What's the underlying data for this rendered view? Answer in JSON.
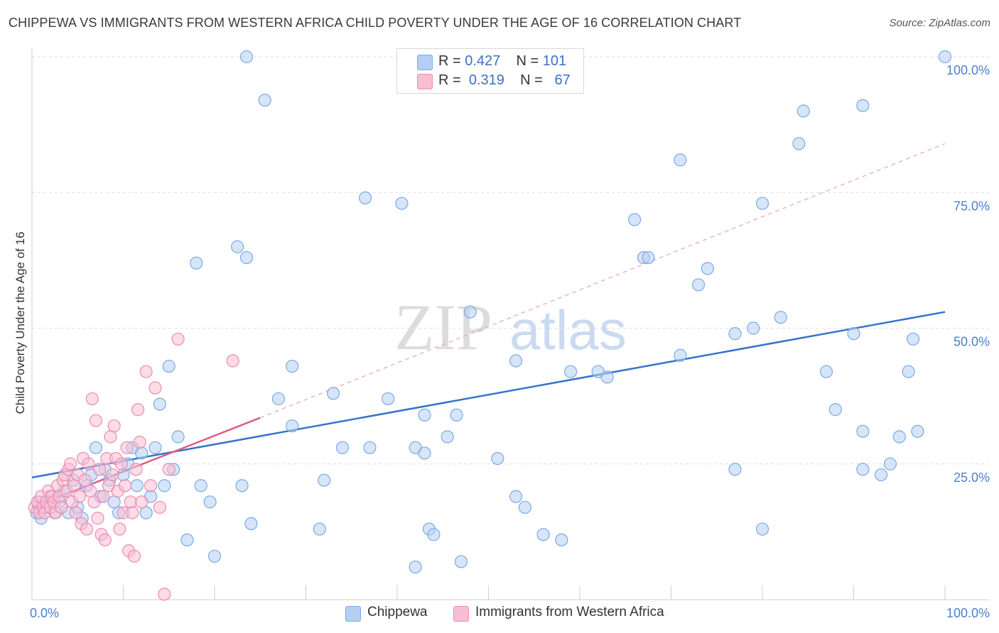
{
  "title": "CHIPPEWA VS IMMIGRANTS FROM WESTERN AFRICA CHILD POVERTY UNDER THE AGE OF 16 CORRELATION CHART",
  "source": "Source: ZipAtlas.com",
  "watermark": {
    "zip": "ZIP",
    "atlas": "atlas"
  },
  "legend_top": {
    "rows": [
      {
        "r_label": "R =",
        "r_value": "0.427",
        "n_label": "N =",
        "n_value": "101"
      },
      {
        "r_label": "R =",
        "r_value": "0.319",
        "n_label": "N =",
        "n_value": "67"
      }
    ]
  },
  "chart_data": {
    "type": "scatter",
    "title": "CHIPPEWA VS IMMIGRANTS FROM WESTERN AFRICA CHILD POVERTY UNDER THE AGE OF 16 CORRELATION CHART",
    "xlabel": "",
    "ylabel": "Child Poverty Under the Age of 16",
    "xlim": [
      0,
      100
    ],
    "ylim": [
      0,
      100
    ],
    "x_tick_labels": [
      "0.0%",
      "100.0%"
    ],
    "y_ticks": [
      25,
      50,
      75,
      100
    ],
    "y_tick_labels": [
      "25.0%",
      "50.0%",
      "75.0%",
      "100.0%"
    ],
    "grid": true,
    "legend_position": "bottom",
    "series": [
      {
        "name": "Chippewa",
        "color": "#7aaae6",
        "fill": "#b4cff2",
        "line_color": "#3674cc",
        "R": 0.427,
        "N": 101,
        "trend": {
          "x0": 0,
          "y0": 22.5,
          "x1": 100,
          "y1": 53.0,
          "dashed_extension": false
        },
        "points": [
          [
            0.5,
            16
          ],
          [
            0.8,
            18
          ],
          [
            1,
            15
          ],
          [
            1.5,
            17
          ],
          [
            2,
            19
          ],
          [
            2.5,
            16
          ],
          [
            3,
            18
          ],
          [
            3.5,
            20
          ],
          [
            4,
            16
          ],
          [
            4.5,
            22
          ],
          [
            5,
            17
          ],
          [
            5.5,
            15
          ],
          [
            6,
            21
          ],
          [
            6.5,
            23
          ],
          [
            7,
            28
          ],
          [
            7.5,
            19
          ],
          [
            8,
            24
          ],
          [
            8.5,
            22
          ],
          [
            9,
            18
          ],
          [
            9.5,
            16
          ],
          [
            10,
            23
          ],
          [
            10.5,
            25
          ],
          [
            11,
            28
          ],
          [
            11.5,
            21
          ],
          [
            12,
            27
          ],
          [
            12.5,
            16
          ],
          [
            13,
            19
          ],
          [
            13.5,
            28
          ],
          [
            14,
            36
          ],
          [
            14.5,
            21
          ],
          [
            15,
            43
          ],
          [
            15.5,
            24
          ],
          [
            16,
            30
          ],
          [
            17,
            11
          ],
          [
            18,
            62
          ],
          [
            18.5,
            21
          ],
          [
            19.5,
            18
          ],
          [
            20,
            8
          ],
          [
            22.5,
            65
          ],
          [
            23,
            21
          ],
          [
            23.5,
            100
          ],
          [
            23.5,
            63
          ],
          [
            24,
            14
          ],
          [
            25.5,
            92
          ],
          [
            27,
            37
          ],
          [
            28.5,
            32
          ],
          [
            28.5,
            43
          ],
          [
            31.5,
            13
          ],
          [
            32,
            22
          ],
          [
            33,
            38
          ],
          [
            34,
            28
          ],
          [
            36.5,
            74
          ],
          [
            37,
            28
          ],
          [
            39,
            37
          ],
          [
            40.5,
            73
          ],
          [
            42,
            6
          ],
          [
            42,
            28
          ],
          [
            43,
            27
          ],
          [
            43,
            34
          ],
          [
            43.5,
            13
          ],
          [
            44,
            12
          ],
          [
            45.5,
            30
          ],
          [
            46.5,
            34
          ],
          [
            47,
            7
          ],
          [
            48,
            53
          ],
          [
            51,
            26
          ],
          [
            53,
            19
          ],
          [
            53,
            44
          ],
          [
            54,
            17
          ],
          [
            56,
            12
          ],
          [
            58,
            11
          ],
          [
            59,
            42
          ],
          [
            62,
            42
          ],
          [
            63,
            41
          ],
          [
            66,
            70
          ],
          [
            67,
            63
          ],
          [
            67.5,
            63
          ],
          [
            71,
            81
          ],
          [
            71,
            45
          ],
          [
            73,
            58
          ],
          [
            74,
            61
          ],
          [
            77,
            24
          ],
          [
            77,
            49
          ],
          [
            79,
            50
          ],
          [
            80,
            73
          ],
          [
            80,
            13
          ],
          [
            82,
            52
          ],
          [
            84,
            84
          ],
          [
            84.5,
            90
          ],
          [
            87,
            42
          ],
          [
            88,
            35
          ],
          [
            90,
            49
          ],
          [
            91,
            91
          ],
          [
            91,
            31
          ],
          [
            91,
            24
          ],
          [
            93,
            23
          ],
          [
            94,
            25
          ],
          [
            95,
            30
          ],
          [
            96,
            42
          ],
          [
            96.5,
            48
          ],
          [
            97,
            31
          ],
          [
            100,
            100
          ]
        ]
      },
      {
        "name": "Immigrants from Western Africa",
        "color": "#ee8ab0",
        "fill": "#f7bfd3",
        "line_color": "#e05a8a",
        "R": 0.319,
        "N": 67,
        "trend": {
          "x0": 0,
          "y0": 17.0,
          "x1": 25,
          "y1": 33.5,
          "extend_to_x": 100,
          "extend_to_y": 84.0
        },
        "points": [
          [
            0.3,
            17
          ],
          [
            0.6,
            18
          ],
          [
            0.8,
            16
          ],
          [
            1,
            19
          ],
          [
            1.2,
            17
          ],
          [
            1.4,
            16
          ],
          [
            1.6,
            18
          ],
          [
            1.8,
            20
          ],
          [
            2,
            17
          ],
          [
            2.2,
            19
          ],
          [
            2.4,
            18
          ],
          [
            2.6,
            16
          ],
          [
            2.8,
            21
          ],
          [
            3,
            19
          ],
          [
            3.2,
            17
          ],
          [
            3.4,
            22
          ],
          [
            3.6,
            23
          ],
          [
            3.8,
            20
          ],
          [
            4,
            24
          ],
          [
            4.2,
            25
          ],
          [
            4.4,
            18
          ],
          [
            4.6,
            21
          ],
          [
            4.8,
            16
          ],
          [
            5,
            23
          ],
          [
            5.2,
            19
          ],
          [
            5.4,
            14
          ],
          [
            5.6,
            26
          ],
          [
            5.8,
            22
          ],
          [
            6,
            13
          ],
          [
            6.2,
            25
          ],
          [
            6.4,
            20
          ],
          [
            6.6,
            37
          ],
          [
            6.8,
            18
          ],
          [
            7,
            33
          ],
          [
            7.2,
            15
          ],
          [
            7.4,
            24
          ],
          [
            7.6,
            12
          ],
          [
            7.8,
            19
          ],
          [
            8,
            11
          ],
          [
            8.2,
            26
          ],
          [
            8.4,
            21
          ],
          [
            8.6,
            30
          ],
          [
            8.8,
            23
          ],
          [
            9,
            32
          ],
          [
            9.2,
            26
          ],
          [
            9.4,
            20
          ],
          [
            9.6,
            13
          ],
          [
            9.8,
            25
          ],
          [
            10,
            16
          ],
          [
            10.2,
            21
          ],
          [
            10.4,
            28
          ],
          [
            10.6,
            9
          ],
          [
            10.8,
            18
          ],
          [
            11,
            16
          ],
          [
            11.2,
            8
          ],
          [
            11.4,
            24
          ],
          [
            11.6,
            35
          ],
          [
            11.8,
            29
          ],
          [
            12,
            18
          ],
          [
            12.5,
            42
          ],
          [
            13,
            21
          ],
          [
            13.5,
            39
          ],
          [
            14,
            17
          ],
          [
            14.5,
            1
          ],
          [
            15,
            24
          ],
          [
            16,
            48
          ],
          [
            22,
            44
          ]
        ]
      }
    ]
  }
}
